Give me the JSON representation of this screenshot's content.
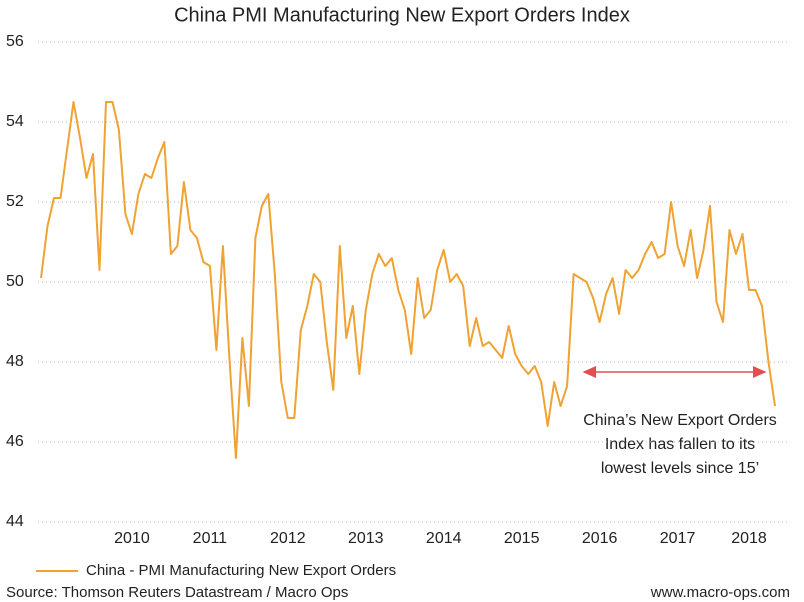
{
  "chart_data": {
    "type": "line",
    "title": "China PMI Manufacturing New Export Orders Index",
    "categories": [
      null,
      null,
      null,
      null,
      null,
      null,
      null,
      null,
      null,
      null,
      null,
      null,
      null,
      null,
      "2010",
      null,
      null,
      null,
      null,
      null,
      null,
      null,
      null,
      null,
      null,
      null,
      "2011",
      null,
      null,
      null,
      null,
      null,
      null,
      null,
      null,
      null,
      null,
      null,
      "2012",
      null,
      null,
      null,
      null,
      null,
      null,
      null,
      null,
      null,
      null,
      null,
      "2013",
      null,
      null,
      null,
      null,
      null,
      null,
      null,
      null,
      null,
      null,
      null,
      "2014",
      null,
      null,
      null,
      null,
      null,
      null,
      null,
      null,
      null,
      null,
      null,
      "2015",
      null,
      null,
      null,
      null,
      null,
      null,
      null,
      null,
      null,
      null,
      null,
      "2016",
      null,
      null,
      null,
      null,
      null,
      null,
      null,
      null,
      null,
      null,
      null,
      "2017",
      null,
      null,
      null,
      null,
      null,
      null,
      null,
      null,
      null,
      null,
      "2018",
      null,
      null,
      null,
      null
    ],
    "series": [
      {
        "name": "China - PMI Manufacturing New Export Orders",
        "color": "#f0a232",
        "values": [
          50.1,
          51.4,
          52.1,
          52.1,
          53.3,
          54.5,
          53.6,
          52.6,
          53.2,
          50.3,
          54.5,
          54.5,
          53.8,
          51.7,
          51.2,
          52.2,
          52.7,
          52.6,
          53.1,
          53.5,
          50.7,
          50.9,
          52.5,
          51.3,
          51.1,
          50.5,
          50.4,
          48.3,
          50.9,
          48.1,
          45.6,
          48.6,
          46.9,
          51.1,
          51.9,
          52.2,
          50.2,
          47.5,
          46.6,
          46.6,
          48.8,
          49.4,
          50.2,
          50.0,
          48.5,
          47.3,
          50.9,
          48.6,
          49.4,
          47.7,
          49.3,
          50.2,
          50.7,
          50.4,
          50.6,
          49.8,
          49.3,
          48.2,
          50.1,
          49.1,
          49.3,
          50.3,
          50.8,
          50.0,
          50.2,
          49.9,
          48.4,
          49.1,
          48.4,
          48.5,
          48.3,
          48.1,
          48.9,
          48.2,
          47.9,
          47.7,
          47.9,
          47.5,
          46.4,
          47.5,
          46.9,
          47.4,
          50.2,
          50.1,
          50.0,
          49.6,
          49.0,
          49.7,
          50.1,
          49.2,
          50.3,
          50.1,
          50.3,
          50.7,
          51.0,
          50.6,
          50.7,
          52.0,
          50.9,
          50.4,
          51.3,
          50.1,
          50.8,
          51.9,
          49.5,
          49.0,
          51.3,
          50.7,
          51.2,
          49.8,
          49.8,
          49.4,
          48.0,
          46.9
        ]
      }
    ],
    "ylim": [
      44,
      56
    ],
    "yticks": [
      44,
      46,
      48,
      50,
      52,
      54,
      56
    ],
    "grid": true,
    "annotation": [
      "China’s New Export Orders",
      "Index has fallen to its",
      "lowest levels since 15’"
    ],
    "source": "Source: Thomson Reuters Datastream / Macro Ops",
    "website": "www.macro-ops.com"
  }
}
